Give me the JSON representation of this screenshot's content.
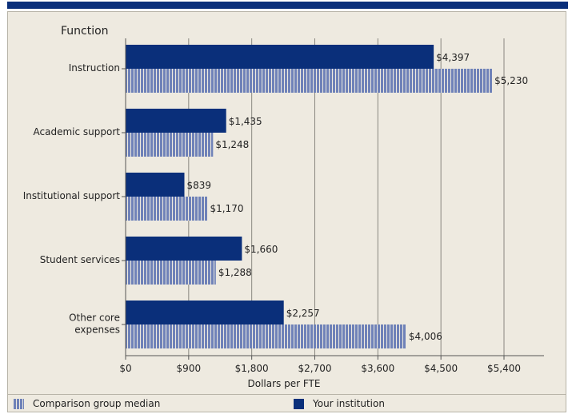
{
  "chart_data": {
    "type": "bar",
    "orientation": "horizontal",
    "axis_title": "Function",
    "xlabel": "Dollars per FTE",
    "xlim": [
      0,
      5400
    ],
    "x_ticks": [
      "$0",
      "$900",
      "$1,800",
      "$2,700",
      "$3,600",
      "$4,500",
      "$5,400"
    ],
    "x_tick_values": [
      0,
      900,
      1800,
      2700,
      3600,
      4500,
      5400
    ],
    "grid": "vertical",
    "categories": [
      [
        "Instruction"
      ],
      [
        "Academic support"
      ],
      [
        "Institutional support"
      ],
      [
        "Student services"
      ],
      [
        "Other core",
        "expenses"
      ]
    ],
    "series": [
      {
        "name": "Your institution",
        "color": "#0a2f7a",
        "values": [
          4397,
          1435,
          839,
          1660,
          2257
        ],
        "labels": [
          "$4,397",
          "$1,435",
          "$839",
          "$1,660",
          "$2,257"
        ]
      },
      {
        "name": "Comparison group median",
        "color": "#6f82b8",
        "values": [
          5230,
          1248,
          1170,
          1288,
          4006
        ],
        "labels": [
          "$5,230",
          "$1,248",
          "$1,170",
          "$1,288",
          "$4,006"
        ]
      }
    ]
  },
  "legend": {
    "median_label": "Comparison group median",
    "yours_label": "Your institution"
  }
}
